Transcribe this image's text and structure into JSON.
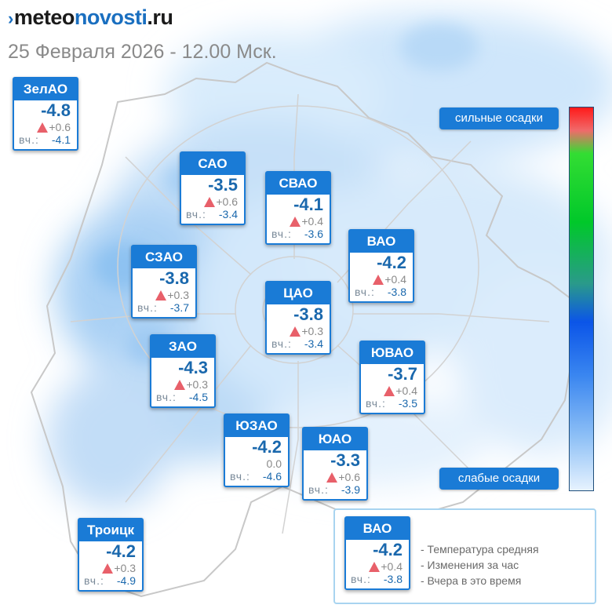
{
  "header": {
    "logo": {
      "mark": "›",
      "part1": "meteo",
      "part2": "novosti",
      "part3": ".ru"
    },
    "datetime": "25 Февраля 2026 - 12.00 Мск."
  },
  "yesterday_label": "вч.:",
  "districts": [
    {
      "id": "zelao",
      "name": "ЗелАО",
      "temp": "-4.8",
      "change": "+0.6",
      "change_up": true,
      "yesterday": "-4.1"
    },
    {
      "id": "sao",
      "name": "САО",
      "temp": "-3.5",
      "change": "+0.6",
      "change_up": true,
      "yesterday": "-3.4"
    },
    {
      "id": "svao",
      "name": "СВАО",
      "temp": "-4.1",
      "change": "+0.4",
      "change_up": true,
      "yesterday": "-3.6"
    },
    {
      "id": "szao",
      "name": "СЗАО",
      "temp": "-3.8",
      "change": "+0.3",
      "change_up": true,
      "yesterday": "-3.7"
    },
    {
      "id": "vao",
      "name": "ВАО",
      "temp": "-4.2",
      "change": "+0.4",
      "change_up": true,
      "yesterday": "-3.8"
    },
    {
      "id": "cao",
      "name": "ЦАО",
      "temp": "-3.8",
      "change": "+0.3",
      "change_up": true,
      "yesterday": "-3.4"
    },
    {
      "id": "zao",
      "name": "ЗАО",
      "temp": "-4.3",
      "change": "+0.3",
      "change_up": true,
      "yesterday": "-4.5"
    },
    {
      "id": "yuvao",
      "name": "ЮВАО",
      "temp": "-3.7",
      "change": "+0.4",
      "change_up": true,
      "yesterday": "-3.5"
    },
    {
      "id": "yuzao",
      "name": "ЮЗАО",
      "temp": "-4.2",
      "change": "0.0",
      "change_up": false,
      "yesterday": "-4.6"
    },
    {
      "id": "yuao",
      "name": "ЮАО",
      "temp": "-3.3",
      "change": "+0.6",
      "change_up": true,
      "yesterday": "-3.9"
    },
    {
      "id": "troick",
      "name": "Троицк",
      "temp": "-4.2",
      "change": "+0.3",
      "change_up": true,
      "yesterday": "-4.9"
    }
  ],
  "precip_scale": {
    "top_label": "сильные осадки",
    "bottom_label": "слабые осадки",
    "colors": [
      "#ff1a1a",
      "#33dd33",
      "#0b55e8",
      "#e6f2fe"
    ]
  },
  "legend": {
    "sample": {
      "name": "ВАО",
      "temp": "-4.2",
      "change": "+0.4",
      "yesterday": "-3.8"
    },
    "lines": [
      "- Температура средняя",
      "- Изменения за час",
      "- Вчера в это время"
    ]
  },
  "colors": {
    "accent": "#1a7bd6",
    "temp_text": "#1a68ad",
    "up_arrow": "#e8606a"
  }
}
